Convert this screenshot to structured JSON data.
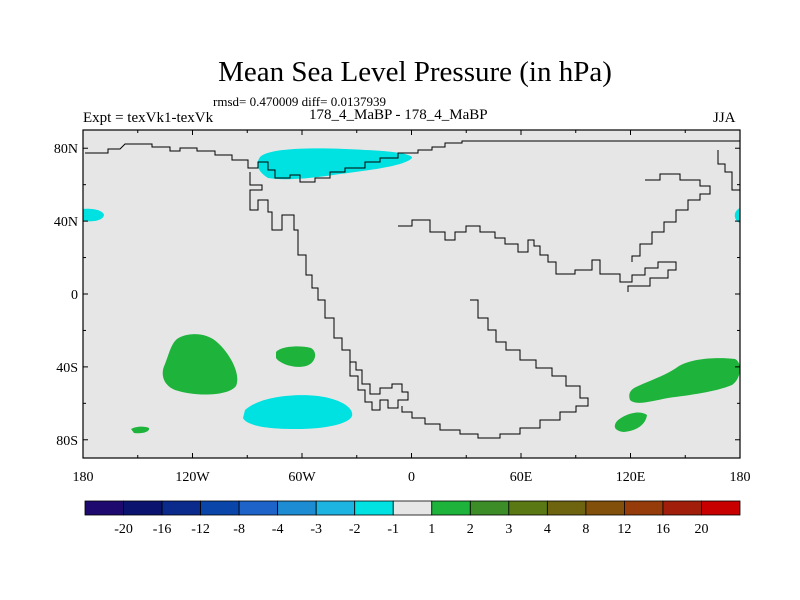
{
  "header": {
    "title": "Mean Sea Level Pressure (in hPa)",
    "stats": "rmsd= 0.470009 diff= 0.0137939",
    "left_label": "Expt = texVk1-texVk",
    "center_label": "178_4_MaBP - 178_4_MaBP",
    "right_label": "JJA"
  },
  "chart_data": {
    "type": "heatmap",
    "title": "Mean Sea Level Pressure (in hPa)",
    "xlabel": "",
    "ylabel": "",
    "xlim": [
      -180,
      180
    ],
    "ylim": [
      -90,
      90
    ],
    "x_ticks": [
      {
        "value": -180,
        "label": "180"
      },
      {
        "value": -120,
        "label": "120W"
      },
      {
        "value": -60,
        "label": "60W"
      },
      {
        "value": 0,
        "label": "0"
      },
      {
        "value": 60,
        "label": "60E"
      },
      {
        "value": 120,
        "label": "120E"
      },
      {
        "value": 180,
        "label": "180"
      }
    ],
    "y_ticks": [
      {
        "value": 80,
        "label": "80N"
      },
      {
        "value": 40,
        "label": "40N"
      },
      {
        "value": 0,
        "label": "0"
      },
      {
        "value": -40,
        "label": "40S"
      },
      {
        "value": -80,
        "label": "80S"
      }
    ],
    "colorbar": {
      "colors": [
        "#1e0a6e",
        "#0a146e",
        "#0a2a8c",
        "#0a46aa",
        "#1e64c8",
        "#1e8cd2",
        "#1eb4e1",
        "#00e1e1",
        "#e6e6e6",
        "#1eb43c",
        "#3c8c28",
        "#5a7814",
        "#6e6410",
        "#82500a",
        "#963c0a",
        "#a01e0a",
        "#c80000"
      ],
      "boundaries": [
        "-20",
        "-16",
        "-12",
        "-8",
        "-4",
        "-3",
        "-2",
        "-1",
        "1",
        "2",
        "3",
        "4",
        "8",
        "12",
        "16",
        "20"
      ]
    },
    "anomalies": [
      {
        "name": "arctic-low",
        "category": "-2 to -1",
        "color": "#00e1e1",
        "center": [
          -40,
          75
        ]
      },
      {
        "name": "north-atlantic-low-west",
        "category": "-2 to -1",
        "color": "#00e1e1",
        "center": [
          -177,
          42
        ]
      },
      {
        "name": "north-pacific-low-east",
        "category": "-2 to -1",
        "color": "#00e1e1",
        "center": [
          178,
          42
        ]
      },
      {
        "name": "south-pacific-high",
        "category": "1 to 2",
        "color": "#1eb43c",
        "center": [
          -115,
          -37
        ]
      },
      {
        "name": "south-atlantic-high",
        "category": "1 to 2",
        "color": "#1eb43c",
        "center": [
          -56,
          -33
        ]
      },
      {
        "name": "southern-ocean-low",
        "category": "-2 to -1",
        "color": "#00e1e1",
        "center": [
          -59,
          -63
        ]
      },
      {
        "name": "small-southern-high",
        "category": "1 to 2",
        "color": "#1eb43c",
        "center": [
          -148,
          -74
        ]
      },
      {
        "name": "australia-east-high",
        "category": "1 to 2",
        "color": "#1eb43c",
        "center": [
          155,
          -46
        ]
      },
      {
        "name": "small-antarctic-high",
        "category": "1 to 2",
        "color": "#1eb43c",
        "center": [
          119,
          -69
        ]
      }
    ]
  }
}
